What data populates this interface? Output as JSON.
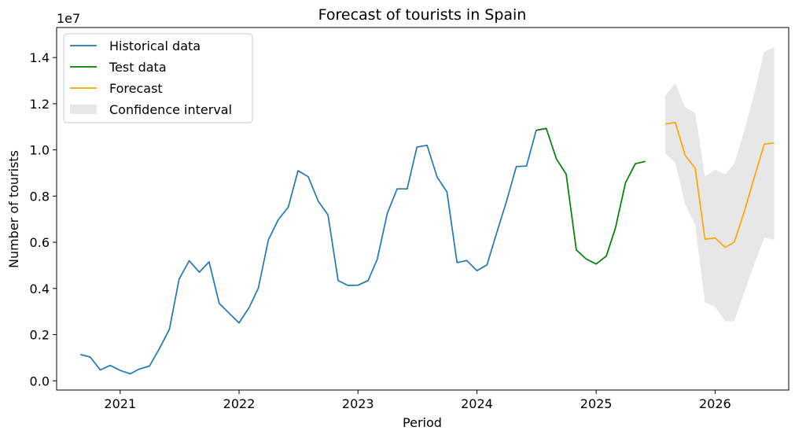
{
  "chart_data": {
    "type": "line",
    "title": "Forecast of tourists in Spain",
    "xlabel": "Period",
    "ylabel": "Number of tourists",
    "y_offset_label": "1e7",
    "y_scale": 10000000,
    "xlim": [
      "2020-06-20",
      "2026-08-15"
    ],
    "ylim": [
      -0.04,
      1.53
    ],
    "x_ticks": [
      {
        "date": "2021-01-01",
        "label": "2021"
      },
      {
        "date": "2022-01-01",
        "label": "2022"
      },
      {
        "date": "2023-01-01",
        "label": "2023"
      },
      {
        "date": "2024-01-01",
        "label": "2024"
      },
      {
        "date": "2025-01-01",
        "label": "2025"
      },
      {
        "date": "2026-01-01",
        "label": "2026"
      }
    ],
    "y_ticks": [
      {
        "value": 0.0,
        "label": "0.0"
      },
      {
        "value": 0.2,
        "label": "0.2"
      },
      {
        "value": 0.4,
        "label": "0.4"
      },
      {
        "value": 0.6,
        "label": "0.6"
      },
      {
        "value": 0.8,
        "label": "0.8"
      },
      {
        "value": 1.0,
        "label": "1.0"
      },
      {
        "value": 1.2,
        "label": "1.2"
      },
      {
        "value": 1.4,
        "label": "1.4"
      }
    ],
    "grid": false,
    "legend_position": "top-left",
    "series": [
      {
        "name": "Historical data",
        "color": "#1f77b4",
        "points": [
          [
            "2020-09-01",
            0.114
          ],
          [
            "2020-10-01",
            0.103
          ],
          [
            "2020-11-01",
            0.047
          ],
          [
            "2020-12-01",
            0.067
          ],
          [
            "2021-01-01",
            0.045
          ],
          [
            "2021-02-01",
            0.03
          ],
          [
            "2021-03-01",
            0.051
          ],
          [
            "2021-04-01",
            0.064
          ],
          [
            "2021-05-01",
            0.138
          ],
          [
            "2021-06-01",
            0.223
          ],
          [
            "2021-07-01",
            0.441
          ],
          [
            "2021-08-01",
            0.52
          ],
          [
            "2021-09-01",
            0.47
          ],
          [
            "2021-10-01",
            0.515
          ],
          [
            "2021-11-01",
            0.335
          ],
          [
            "2021-12-01",
            0.293
          ],
          [
            "2022-01-01",
            0.251
          ],
          [
            "2022-02-01",
            0.318
          ],
          [
            "2022-03-01",
            0.401
          ],
          [
            "2022-04-01",
            0.61
          ],
          [
            "2022-05-01",
            0.697
          ],
          [
            "2022-06-01",
            0.752
          ],
          [
            "2022-07-01",
            0.91
          ],
          [
            "2022-08-01",
            0.884
          ],
          [
            "2022-09-01",
            0.778
          ],
          [
            "2022-10-01",
            0.718
          ],
          [
            "2022-11-01",
            0.434
          ],
          [
            "2022-12-01",
            0.413
          ],
          [
            "2023-01-01",
            0.414
          ],
          [
            "2023-02-01",
            0.434
          ],
          [
            "2023-03-01",
            0.526
          ],
          [
            "2023-04-01",
            0.725
          ],
          [
            "2023-05-01",
            0.831
          ],
          [
            "2023-06-01",
            0.831
          ],
          [
            "2023-07-01",
            1.012
          ],
          [
            "2023-08-01",
            1.02
          ],
          [
            "2023-09-01",
            0.882
          ],
          [
            "2023-10-01",
            0.818
          ],
          [
            "2023-11-01",
            0.512
          ],
          [
            "2023-12-01",
            0.521
          ],
          [
            "2024-01-01",
            0.477
          ],
          [
            "2024-02-01",
            0.502
          ],
          [
            "2024-03-01",
            0.637
          ],
          [
            "2024-04-01",
            0.778
          ],
          [
            "2024-05-01",
            0.928
          ],
          [
            "2024-06-01",
            0.93
          ],
          [
            "2024-07-01",
            1.085
          ],
          [
            "2024-08-01",
            1.093
          ]
        ]
      },
      {
        "name": "Test data",
        "color": "#008000",
        "points": [
          [
            "2024-07-01",
            1.085
          ],
          [
            "2024-08-01",
            1.093
          ],
          [
            "2024-09-01",
            0.961
          ],
          [
            "2024-10-01",
            0.895
          ],
          [
            "2024-11-01",
            0.567
          ],
          [
            "2024-12-01",
            0.528
          ],
          [
            "2025-01-01",
            0.506
          ],
          [
            "2025-02-01",
            0.54
          ],
          [
            "2025-03-01",
            0.661
          ],
          [
            "2025-04-01",
            0.857
          ],
          [
            "2025-05-01",
            0.94
          ],
          [
            "2025-06-01",
            0.95
          ]
        ]
      },
      {
        "name": "Forecast",
        "color": "#ffa500",
        "points": [
          [
            "2025-08-01",
            1.112
          ],
          [
            "2025-09-01",
            1.119
          ],
          [
            "2025-10-01",
            0.977
          ],
          [
            "2025-11-01",
            0.92
          ],
          [
            "2025-12-01",
            0.613
          ],
          [
            "2026-01-01",
            0.619
          ],
          [
            "2026-02-01",
            0.577
          ],
          [
            "2026-03-01",
            0.601
          ],
          [
            "2026-04-01",
            0.735
          ],
          [
            "2026-05-01",
            0.88
          ],
          [
            "2026-06-01",
            1.025
          ],
          [
            "2026-07-01",
            1.03
          ]
        ]
      }
    ],
    "confidence_interval": {
      "name": "Confidence interval",
      "color": "#d3d3d3",
      "points": [
        [
          "2025-08-01",
          0.985,
          1.233
        ],
        [
          "2025-09-01",
          0.945,
          1.29
        ],
        [
          "2025-10-01",
          0.765,
          1.185
        ],
        [
          "2025-11-01",
          0.675,
          1.16
        ],
        [
          "2025-12-01",
          0.34,
          0.885
        ],
        [
          "2026-01-01",
          0.32,
          0.915
        ],
        [
          "2026-02-01",
          0.257,
          0.895
        ],
        [
          "2026-03-01",
          0.258,
          0.94
        ],
        [
          "2026-04-01",
          0.385,
          1.085
        ],
        [
          "2026-05-01",
          0.505,
          1.245
        ],
        [
          "2026-06-01",
          0.62,
          1.425
        ],
        [
          "2026-07-01",
          0.61,
          1.445
        ]
      ]
    }
  }
}
